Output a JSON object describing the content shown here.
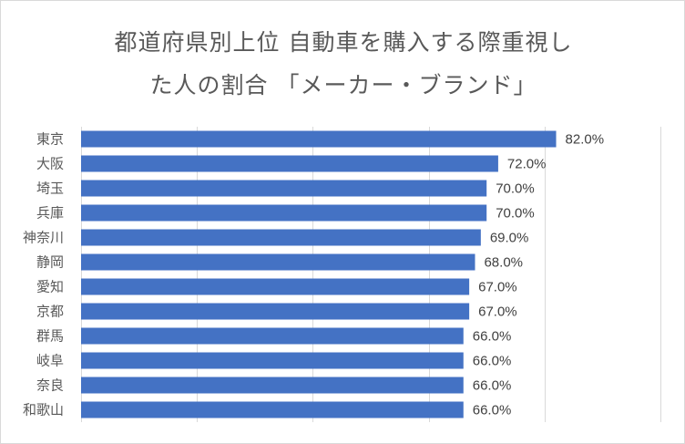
{
  "chart_data": {
    "type": "bar",
    "orientation": "horizontal",
    "title_lines": [
      "都道府県別上位 自動車を購入する際重視し",
      "た人の割合 「メーカー・ブランド」"
    ],
    "categories": [
      "東京",
      "大阪",
      "埼玉",
      "兵庫",
      "神奈川",
      "静岡",
      "愛知",
      "京都",
      "群馬",
      "岐阜",
      "奈良",
      "和歌山"
    ],
    "values": [
      82.0,
      72.0,
      70.0,
      70.0,
      69.0,
      68.0,
      67.0,
      67.0,
      66.0,
      66.0,
      66.0,
      66.0
    ],
    "value_labels": [
      "82.0%",
      "72.0%",
      "70.0%",
      "70.0%",
      "69.0%",
      "68.0%",
      "67.0%",
      "67.0%",
      "66.0%",
      "66.0%",
      "66.0%",
      "66.0%"
    ],
    "xlim": [
      0,
      100
    ],
    "xticks_shown": false,
    "grid": "vertical",
    "legend": "none",
    "bar_color": "#4472c4"
  }
}
